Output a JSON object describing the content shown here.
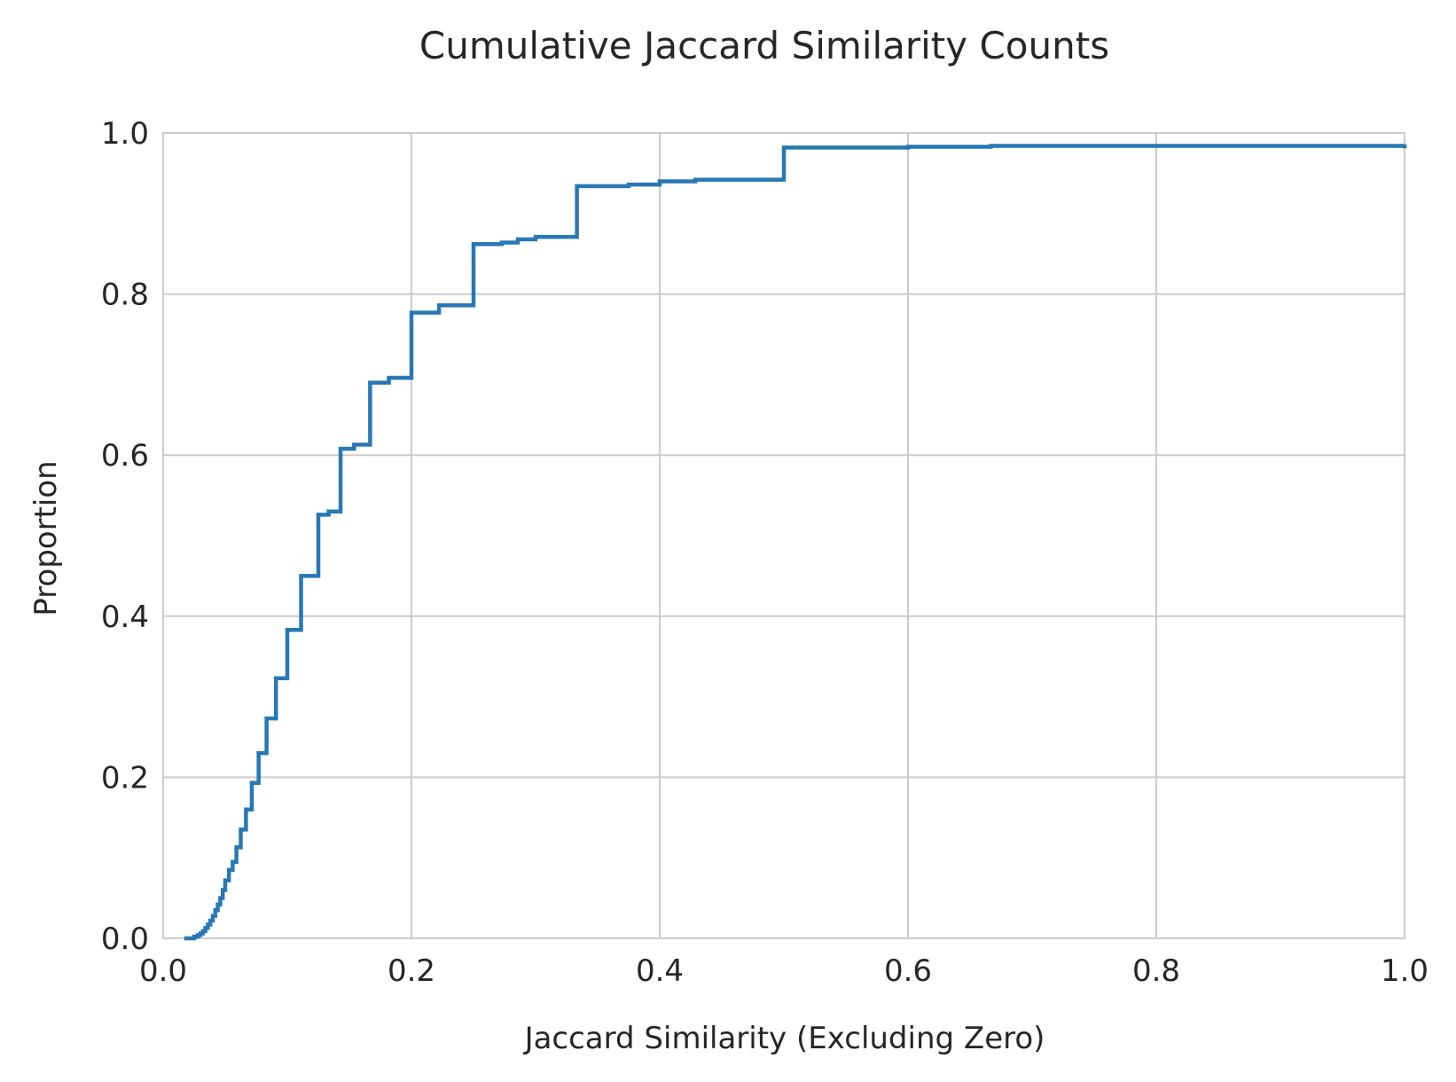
{
  "chart_data": {
    "type": "line",
    "title": "Cumulative Jaccard Similarity Counts",
    "xlabel": "Jaccard Similarity (Excluding Zero)",
    "ylabel": "Proportion",
    "xlim": [
      0.0,
      1.0
    ],
    "ylim": [
      0.0,
      1.0
    ],
    "x_ticks": [
      "0.0",
      "0.2",
      "0.4",
      "0.6",
      "0.8",
      "1.0"
    ],
    "y_ticks": [
      "0.0",
      "0.2",
      "0.4",
      "0.6",
      "0.8",
      "1.0"
    ],
    "grid": true,
    "legend": false,
    "line_color": "#2878b5",
    "grid_color": "#cccccc",
    "series": [
      {
        "step": "post",
        "x": [
          0.017,
          0.025,
          0.028,
          0.03,
          0.032,
          0.034,
          0.036,
          0.038,
          0.04,
          0.042,
          0.044,
          0.046,
          0.048,
          0.05,
          0.053,
          0.056,
          0.059,
          0.0625,
          0.0667,
          0.0714,
          0.0769,
          0.0833,
          0.0909,
          0.1,
          0.1111,
          0.125,
          0.1333,
          0.1429,
          0.1538,
          0.1667,
          0.1818,
          0.2,
          0.2222,
          0.25,
          0.2727,
          0.2857,
          0.3,
          0.3333,
          0.375,
          0.4,
          0.4286,
          0.5,
          0.6,
          0.6667,
          1.0
        ],
        "y": [
          0.0,
          0.002,
          0.004,
          0.006,
          0.009,
          0.013,
          0.017,
          0.022,
          0.028,
          0.035,
          0.042,
          0.05,
          0.06,
          0.072,
          0.085,
          0.095,
          0.113,
          0.135,
          0.16,
          0.193,
          0.23,
          0.273,
          0.323,
          0.383,
          0.45,
          0.526,
          0.53,
          0.608,
          0.613,
          0.69,
          0.696,
          0.777,
          0.786,
          0.862,
          0.864,
          0.868,
          0.871,
          0.934,
          0.936,
          0.94,
          0.942,
          0.982,
          0.983,
          0.984,
          0.986
        ]
      }
    ]
  }
}
